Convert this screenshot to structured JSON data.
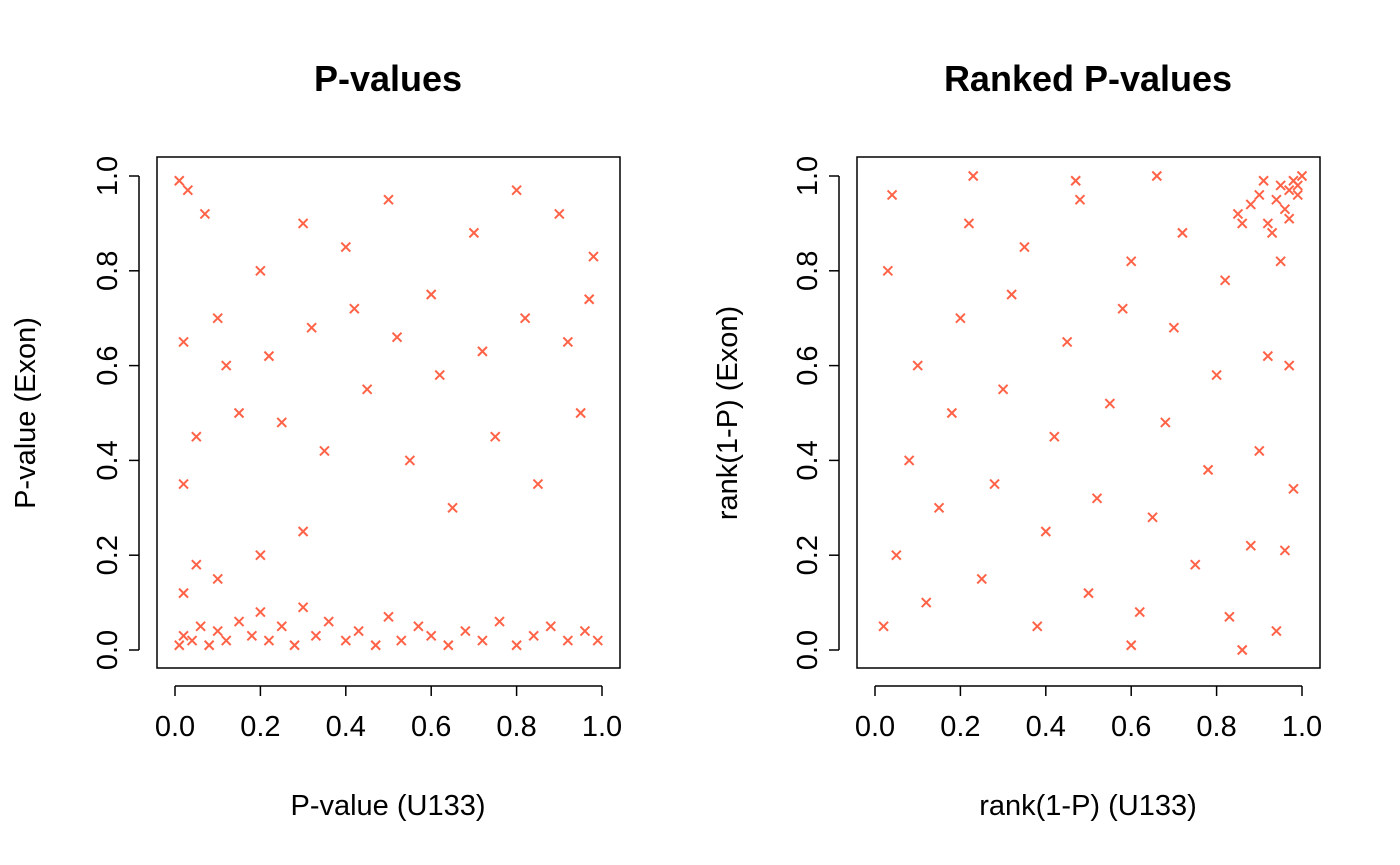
{
  "figure": {
    "marker_color": "#FF6347",
    "marker": "x"
  },
  "chart_data": [
    {
      "type": "scatter",
      "title": "P-values",
      "xlabel": "P-value (U133)",
      "ylabel": "P-value (Exon)",
      "xlim": [
        0,
        1
      ],
      "ylim": [
        0,
        1
      ],
      "xticks": [
        "0.0",
        "0.2",
        "0.4",
        "0.6",
        "0.8",
        "1.0"
      ],
      "yticks": [
        "0.0",
        "0.2",
        "0.4",
        "0.6",
        "0.8",
        "1.0"
      ],
      "grid": false,
      "legend": "none",
      "distribution_note": "dense band of points near y = 0 across all x, sparse uniform scatter elsewhere",
      "series": [
        {
          "color": "#FF6347",
          "points": [
            [
              0.01,
              0.01
            ],
            [
              0.02,
              0.03
            ],
            [
              0.04,
              0.02
            ],
            [
              0.06,
              0.05
            ],
            [
              0.08,
              0.01
            ],
            [
              0.1,
              0.04
            ],
            [
              0.12,
              0.02
            ],
            [
              0.15,
              0.06
            ],
            [
              0.18,
              0.03
            ],
            [
              0.2,
              0.08
            ],
            [
              0.22,
              0.02
            ],
            [
              0.25,
              0.05
            ],
            [
              0.28,
              0.01
            ],
            [
              0.3,
              0.09
            ],
            [
              0.33,
              0.03
            ],
            [
              0.36,
              0.06
            ],
            [
              0.4,
              0.02
            ],
            [
              0.43,
              0.04
            ],
            [
              0.47,
              0.01
            ],
            [
              0.5,
              0.07
            ],
            [
              0.53,
              0.02
            ],
            [
              0.57,
              0.05
            ],
            [
              0.6,
              0.03
            ],
            [
              0.64,
              0.01
            ],
            [
              0.68,
              0.04
            ],
            [
              0.72,
              0.02
            ],
            [
              0.76,
              0.06
            ],
            [
              0.8,
              0.01
            ],
            [
              0.84,
              0.03
            ],
            [
              0.88,
              0.05
            ],
            [
              0.92,
              0.02
            ],
            [
              0.96,
              0.04
            ],
            [
              0.99,
              0.02
            ],
            [
              0.02,
              0.12
            ],
            [
              0.05,
              0.18
            ],
            [
              0.1,
              0.15
            ],
            [
              0.2,
              0.2
            ],
            [
              0.3,
              0.25
            ],
            [
              0.02,
              0.35
            ],
            [
              0.05,
              0.45
            ],
            [
              0.15,
              0.5
            ],
            [
              0.25,
              0.48
            ],
            [
              0.35,
              0.42
            ],
            [
              0.45,
              0.55
            ],
            [
              0.55,
              0.4
            ],
            [
              0.65,
              0.3
            ],
            [
              0.75,
              0.45
            ],
            [
              0.85,
              0.35
            ],
            [
              0.95,
              0.5
            ],
            [
              0.02,
              0.65
            ],
            [
              0.1,
              0.7
            ],
            [
              0.2,
              0.8
            ],
            [
              0.3,
              0.9
            ],
            [
              0.4,
              0.85
            ],
            [
              0.5,
              0.95
            ],
            [
              0.6,
              0.75
            ],
            [
              0.7,
              0.88
            ],
            [
              0.8,
              0.97
            ],
            [
              0.9,
              0.92
            ],
            [
              0.98,
              0.83
            ],
            [
              0.01,
              0.99
            ],
            [
              0.03,
              0.97
            ],
            [
              0.07,
              0.92
            ],
            [
              0.12,
              0.6
            ],
            [
              0.22,
              0.62
            ],
            [
              0.32,
              0.68
            ],
            [
              0.42,
              0.72
            ],
            [
              0.52,
              0.66
            ],
            [
              0.62,
              0.58
            ],
            [
              0.72,
              0.63
            ],
            [
              0.82,
              0.7
            ],
            [
              0.92,
              0.65
            ],
            [
              0.97,
              0.74
            ]
          ]
        }
      ]
    },
    {
      "type": "scatter",
      "title": "Ranked P-values",
      "xlabel": "rank(1-P) (U133)",
      "ylabel": "rank(1-P) (Exon)",
      "xlim": [
        0,
        1
      ],
      "ylim": [
        0,
        1
      ],
      "xticks": [
        "0.0",
        "0.2",
        "0.4",
        "0.6",
        "0.8",
        "1.0"
      ],
      "yticks": [
        "0.0",
        "0.2",
        "0.4",
        "0.6",
        "0.8",
        "1.0"
      ],
      "grid": false,
      "legend": "none",
      "distribution_note": "roughly uniform scatter with a dense cluster in the top-right corner near (1, 1)",
      "series": [
        {
          "color": "#FF6347",
          "points": [
            [
              0.02,
              0.05
            ],
            [
              0.05,
              0.2
            ],
            [
              0.08,
              0.4
            ],
            [
              0.1,
              0.6
            ],
            [
              0.03,
              0.8
            ],
            [
              0.12,
              0.1
            ],
            [
              0.15,
              0.3
            ],
            [
              0.18,
              0.5
            ],
            [
              0.2,
              0.7
            ],
            [
              0.22,
              0.9
            ],
            [
              0.25,
              0.15
            ],
            [
              0.28,
              0.35
            ],
            [
              0.3,
              0.55
            ],
            [
              0.32,
              0.75
            ],
            [
              0.35,
              0.85
            ],
            [
              0.38,
              0.05
            ],
            [
              0.4,
              0.25
            ],
            [
              0.42,
              0.45
            ],
            [
              0.45,
              0.65
            ],
            [
              0.48,
              0.95
            ],
            [
              0.5,
              0.12
            ],
            [
              0.52,
              0.32
            ],
            [
              0.55,
              0.52
            ],
            [
              0.58,
              0.72
            ],
            [
              0.6,
              0.82
            ],
            [
              0.62,
              0.08
            ],
            [
              0.65,
              0.28
            ],
            [
              0.68,
              0.48
            ],
            [
              0.7,
              0.68
            ],
            [
              0.72,
              0.88
            ],
            [
              0.75,
              0.18
            ],
            [
              0.78,
              0.38
            ],
            [
              0.8,
              0.58
            ],
            [
              0.82,
              0.78
            ],
            [
              0.85,
              0.92
            ],
            [
              0.88,
              0.22
            ],
            [
              0.9,
              0.42
            ],
            [
              0.92,
              0.62
            ],
            [
              0.95,
              0.82
            ],
            [
              0.97,
              0.6
            ],
            [
              0.86,
              0.9
            ],
            [
              0.88,
              0.94
            ],
            [
              0.9,
              0.96
            ],
            [
              0.92,
              0.9
            ],
            [
              0.94,
              0.95
            ],
            [
              0.95,
              0.98
            ],
            [
              0.96,
              0.93
            ],
            [
              0.97,
              0.97
            ],
            [
              0.98,
              0.99
            ],
            [
              0.99,
              0.96
            ],
            [
              1.0,
              1.0
            ],
            [
              0.99,
              0.98
            ],
            [
              0.97,
              0.91
            ],
            [
              0.93,
              0.88
            ],
            [
              0.91,
              0.99
            ],
            [
              0.04,
              0.96
            ],
            [
              0.66,
              1.0
            ],
            [
              0.47,
              0.99
            ],
            [
              0.23,
              1.0
            ],
            [
              0.83,
              0.07
            ],
            [
              0.98,
              0.34
            ],
            [
              0.94,
              0.04
            ],
            [
              0.96,
              0.21
            ],
            [
              0.86,
              0.0
            ],
            [
              0.6,
              0.01
            ]
          ]
        }
      ]
    }
  ]
}
